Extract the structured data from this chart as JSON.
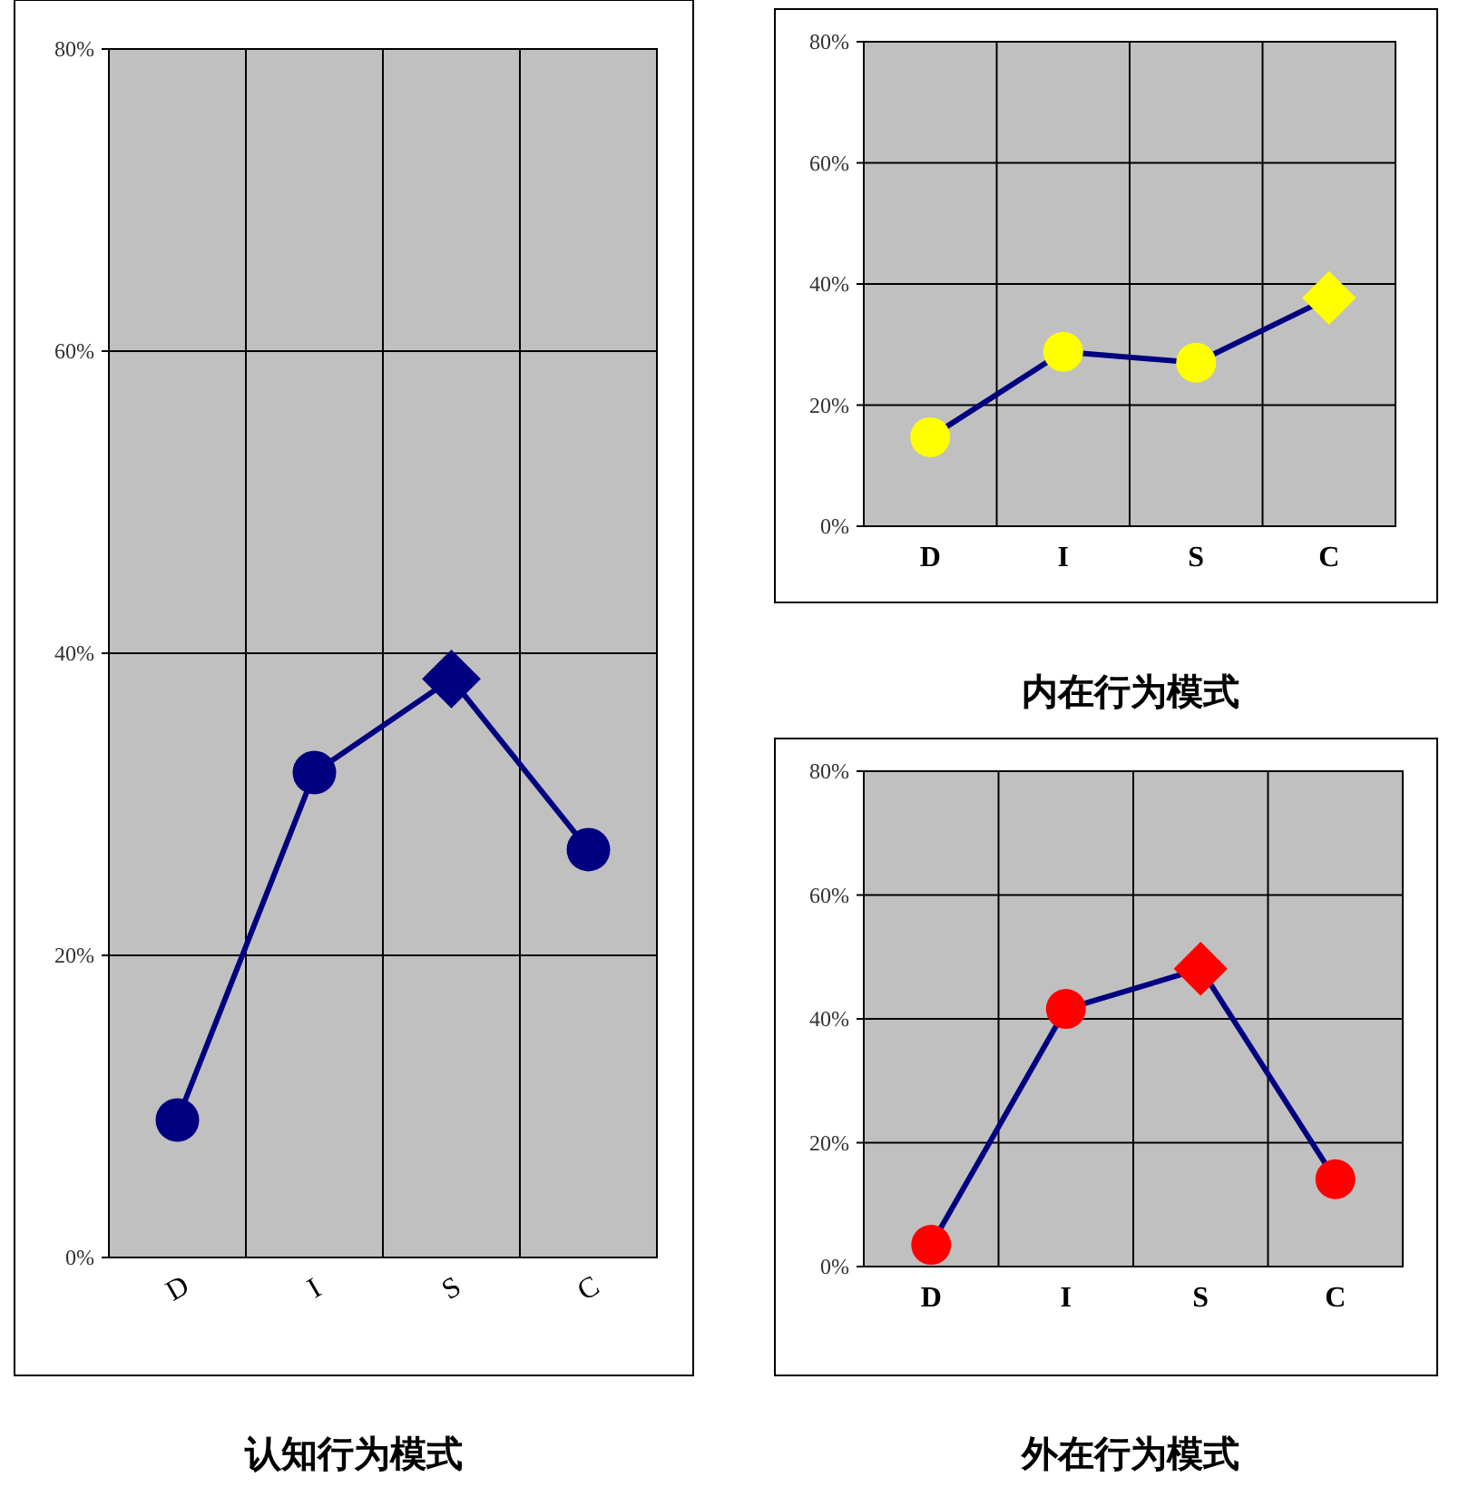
{
  "chart_data": [
    {
      "type": "line",
      "title": "认知行为模式",
      "categories": [
        "D",
        "I",
        "S",
        "C"
      ],
      "series": [
        {
          "color": "#000080",
          "colors": [
            "#000080",
            "#000080",
            "#000080",
            "#000080"
          ],
          "marker": [
            "circle",
            "circle",
            "diamond",
            "circle"
          ],
          "values": [
            9.1,
            32.1,
            38.3,
            27.0
          ]
        }
      ],
      "ylim": [
        0,
        80
      ],
      "yticks": [
        {
          "value": 0,
          "label": "0%"
        },
        {
          "value": 20,
          "label": "20%"
        },
        {
          "value": 40,
          "label": "40%"
        },
        {
          "value": 60,
          "label": "60%"
        },
        {
          "value": 80,
          "label": "80%"
        }
      ],
      "grid": true
    },
    {
      "type": "line",
      "title": "内在行为模式",
      "categories": [
        "D",
        "I",
        "S",
        "C"
      ],
      "series": [
        {
          "color": "#000080",
          "colors": [
            "#ffff00",
            "#ffff00",
            "#ffff00",
            "#ffff00"
          ],
          "marker": [
            "circle",
            "circle",
            "circle",
            "diamond"
          ],
          "values": [
            14.7,
            28.8,
            27.0,
            37.7
          ]
        }
      ],
      "ylim": [
        0,
        80
      ],
      "yticks": [
        {
          "value": 0,
          "label": "0%"
        },
        {
          "value": 20,
          "label": "20%"
        },
        {
          "value": 40,
          "label": "40%"
        },
        {
          "value": 60,
          "label": "60%"
        },
        {
          "value": 80,
          "label": "80%"
        }
      ],
      "grid": true
    },
    {
      "type": "line",
      "title": "外在行为模式",
      "categories": [
        "D",
        "I",
        "S",
        "C"
      ],
      "series": [
        {
          "color": "#000080",
          "colors": [
            "#ff0000",
            "#ff0000",
            "#ff0000",
            "#ff0000"
          ],
          "marker": [
            "circle",
            "circle",
            "diamond",
            "circle"
          ],
          "values": [
            3.5,
            41.6,
            48.1,
            14.1
          ]
        }
      ],
      "ylim": [
        0,
        80
      ],
      "yticks": [
        {
          "value": 0,
          "label": "0%"
        },
        {
          "value": 20,
          "label": "20%"
        },
        {
          "value": 40,
          "label": "40%"
        },
        {
          "value": 60,
          "label": "60%"
        },
        {
          "value": 80,
          "label": "80%"
        }
      ],
      "grid": true
    }
  ]
}
